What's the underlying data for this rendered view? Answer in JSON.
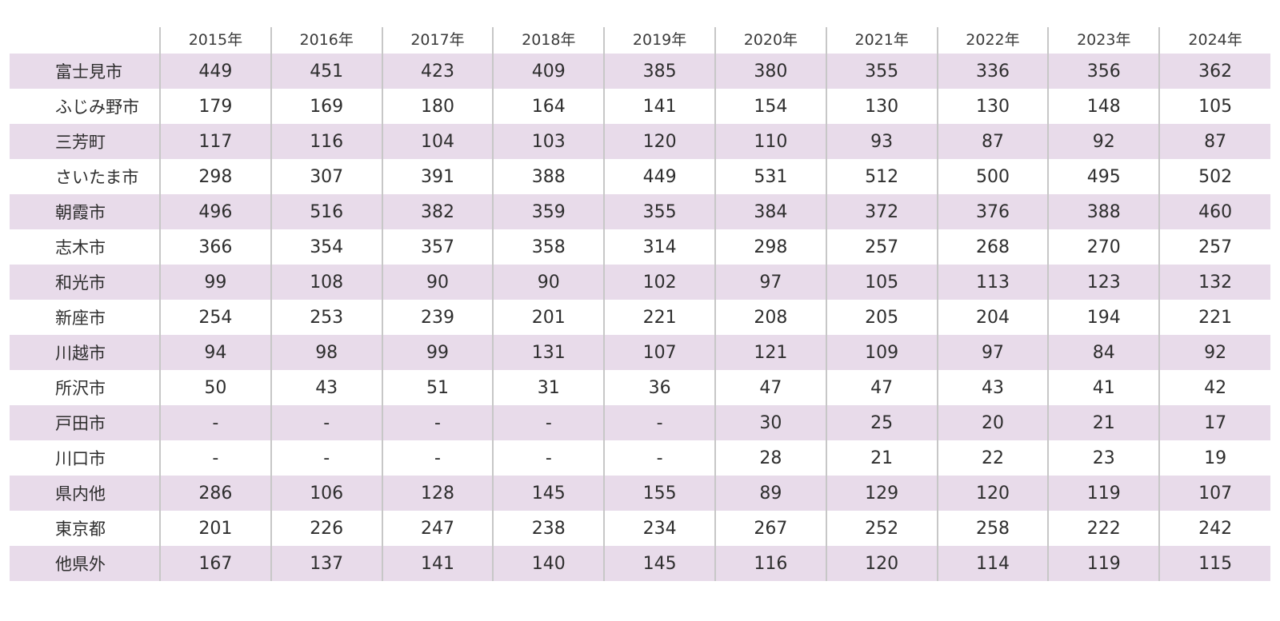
{
  "chart_data": {
    "type": "table",
    "columns": [
      "",
      "2015年",
      "2016年",
      "2017年",
      "2018年",
      "2019年",
      "2020年",
      "2021年",
      "2022年",
      "2023年",
      "2024年"
    ],
    "rows": [
      {
        "label": "富士見市",
        "values": [
          "449",
          "451",
          "423",
          "409",
          "385",
          "380",
          "355",
          "336",
          "356",
          "362"
        ]
      },
      {
        "label": "ふじみ野市",
        "values": [
          "179",
          "169",
          "180",
          "164",
          "141",
          "154",
          "130",
          "130",
          "148",
          "105"
        ]
      },
      {
        "label": "三芳町",
        "values": [
          "117",
          "116",
          "104",
          "103",
          "120",
          "110",
          "93",
          "87",
          "92",
          "87"
        ]
      },
      {
        "label": "さいたま市",
        "values": [
          "298",
          "307",
          "391",
          "388",
          "449",
          "531",
          "512",
          "500",
          "495",
          "502"
        ]
      },
      {
        "label": "朝霞市",
        "values": [
          "496",
          "516",
          "382",
          "359",
          "355",
          "384",
          "372",
          "376",
          "388",
          "460"
        ]
      },
      {
        "label": "志木市",
        "values": [
          "366",
          "354",
          "357",
          "358",
          "314",
          "298",
          "257",
          "268",
          "270",
          "257"
        ]
      },
      {
        "label": "和光市",
        "values": [
          "99",
          "108",
          "90",
          "90",
          "102",
          "97",
          "105",
          "113",
          "123",
          "132"
        ]
      },
      {
        "label": "新座市",
        "values": [
          "254",
          "253",
          "239",
          "201",
          "221",
          "208",
          "205",
          "204",
          "194",
          "221"
        ]
      },
      {
        "label": "川越市",
        "values": [
          "94",
          "98",
          "99",
          "131",
          "107",
          "121",
          "109",
          "97",
          "84",
          "92"
        ]
      },
      {
        "label": "所沢市",
        "values": [
          "50",
          "43",
          "51",
          "31",
          "36",
          "47",
          "47",
          "43",
          "41",
          "42"
        ]
      },
      {
        "label": "戸田市",
        "values": [
          "-",
          "-",
          "-",
          "-",
          "-",
          "30",
          "25",
          "20",
          "21",
          "17"
        ]
      },
      {
        "label": "川口市",
        "values": [
          "-",
          "-",
          "-",
          "-",
          "-",
          "28",
          "21",
          "22",
          "23",
          "19"
        ]
      },
      {
        "label": "県内他",
        "values": [
          "286",
          "106",
          "128",
          "145",
          "155",
          "89",
          "129",
          "120",
          "119",
          "107"
        ]
      },
      {
        "label": "東京都",
        "values": [
          "201",
          "226",
          "247",
          "238",
          "234",
          "267",
          "252",
          "258",
          "222",
          "242"
        ]
      },
      {
        "label": "他県外",
        "values": [
          "167",
          "137",
          "141",
          "140",
          "145",
          "116",
          "120",
          "114",
          "119",
          "115"
        ]
      }
    ],
    "row_shading_color": "#e8dbea",
    "divider_color": "#c7c7c7",
    "grid": false,
    "legend": "none"
  }
}
